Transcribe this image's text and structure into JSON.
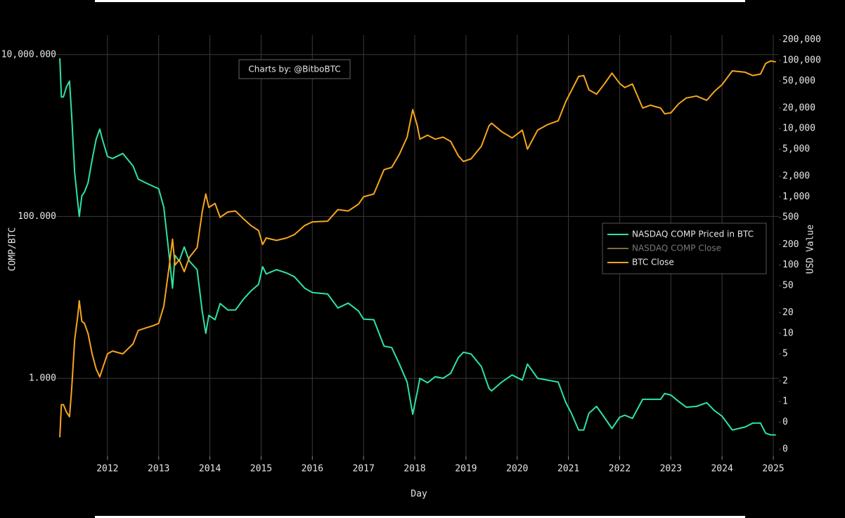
{
  "chart_data": {
    "type": "line",
    "annotation": "Charts by: @BitboBTC",
    "xlabel": "Day",
    "ylabel": "COMP/BTC",
    "y2label": "USD Value",
    "yscale": "log",
    "y2scale": "log",
    "grid": true,
    "legend": "right",
    "xlim": [
      2011.0,
      2025.11
    ],
    "xticks": [
      2012,
      2013,
      2014,
      2015,
      2016,
      2017,
      2018,
      2019,
      2020,
      2021,
      2022,
      2023,
      2024,
      2025
    ],
    "ylim": [
      0.109,
      17420
    ],
    "yticks": [
      {
        "value": 10000,
        "label": "10,000.000"
      },
      {
        "value": 100,
        "label": "100.000"
      },
      {
        "value": 1,
        "label": "1.000"
      }
    ],
    "y2lim": [
      0.158,
      234500
    ],
    "y2ticks": [
      {
        "value": 200000,
        "label": "200,000"
      },
      {
        "value": 100000,
        "label": "100,000"
      },
      {
        "value": 50000,
        "label": "50,000"
      },
      {
        "value": 20000,
        "label": "20,000"
      },
      {
        "value": 10000,
        "label": "10,000"
      },
      {
        "value": 5000,
        "label": "5,000"
      },
      {
        "value": 2000,
        "label": "2,000"
      },
      {
        "value": 1000,
        "label": "1,000"
      },
      500,
      200,
      100,
      50,
      20,
      10,
      5,
      2,
      1,
      {
        "value": 0.5,
        "label": "0"
      },
      {
        "value": 0.2,
        "label": "0"
      }
    ],
    "x": [
      2011.07,
      2011.1,
      2011.14,
      2011.2,
      2011.26,
      2011.3,
      2011.36,
      2011.42,
      2011.45,
      2011.5,
      2011.55,
      2011.62,
      2011.7,
      2011.78,
      2011.85,
      2011.9,
      2012.0,
      2012.1,
      2012.3,
      2012.5,
      2012.6,
      2012.75,
      2012.9,
      2013.0,
      2013.1,
      2013.2,
      2013.27,
      2013.32,
      2013.4,
      2013.5,
      2013.6,
      2013.75,
      2013.85,
      2013.92,
      2013.98,
      2014.1,
      2014.2,
      2014.35,
      2014.5,
      2014.65,
      2014.8,
      2014.95,
      2015.03,
      2015.1,
      2015.3,
      2015.5,
      2015.65,
      2015.85,
      2016.0,
      2016.3,
      2016.5,
      2016.7,
      2016.9,
      2017.0,
      2017.2,
      2017.4,
      2017.55,
      2017.7,
      2017.85,
      2017.96,
      2018.05,
      2018.1,
      2018.25,
      2018.4,
      2018.55,
      2018.7,
      2018.85,
      2018.95,
      2019.1,
      2019.3,
      2019.45,
      2019.5,
      2019.7,
      2019.9,
      2020.1,
      2020.2,
      2020.4,
      2020.6,
      2020.8,
      2020.95,
      2021.05,
      2021.2,
      2021.3,
      2021.4,
      2021.55,
      2021.7,
      2021.85,
      2022.0,
      2022.1,
      2022.25,
      2022.45,
      2022.6,
      2022.8,
      2022.88,
      2023.0,
      2023.15,
      2023.3,
      2023.5,
      2023.7,
      2023.85,
      2024.0,
      2024.2,
      2024.45,
      2024.6,
      2024.75,
      2024.85,
      2024.95,
      2025.05
    ],
    "series": [
      {
        "name": "NASDAQ COMP Priced in BTC",
        "color": "#2ee3a0",
        "axis": "y",
        "visible": true,
        "values": [
          9000,
          3000,
          3000,
          4000,
          4700,
          1800,
          350,
          150,
          100,
          180,
          200,
          260,
          500,
          900,
          1200,
          900,
          550,
          520,
          600,
          420,
          290,
          260,
          235,
          220,
          130,
          35,
          13,
          33,
          28,
          42,
          28,
          22,
          6.8,
          3.6,
          6,
          5.3,
          8.4,
          7,
          7,
          9.4,
          12,
          14.5,
          24,
          19.5,
          22,
          20,
          18,
          13,
          11.5,
          11,
          7.4,
          8.5,
          6.8,
          5.4,
          5.3,
          2.5,
          2.4,
          1.5,
          0.9,
          0.36,
          0.68,
          1.0,
          0.88,
          1.05,
          1.0,
          1.15,
          1.8,
          2.1,
          2.0,
          1.4,
          0.75,
          0.7,
          0.9,
          1.1,
          0.95,
          1.5,
          1.0,
          0.95,
          0.9,
          0.5,
          0.38,
          0.23,
          0.23,
          0.37,
          0.45,
          0.33,
          0.24,
          0.33,
          0.35,
          0.32,
          0.55,
          0.55,
          0.55,
          0.65,
          0.62,
          0.52,
          0.44,
          0.45,
          0.5,
          0.4,
          0.34,
          0.23,
          0.25,
          0.28,
          0.28,
          0.21,
          0.2,
          0.2
        ]
      },
      {
        "name": "NASDAQ COMP Close",
        "color": "#7a6a45",
        "axis": "y2",
        "visible": false,
        "values": [
          null,
          null,
          null,
          null,
          null,
          null,
          null,
          null,
          null,
          null,
          null,
          null,
          null,
          null,
          null,
          null,
          null,
          null,
          null,
          null,
          null,
          null,
          null,
          null,
          null,
          null,
          null,
          null,
          null,
          null,
          null,
          null,
          null,
          null,
          null,
          null,
          null,
          null,
          null,
          null,
          null,
          null,
          null,
          null,
          null,
          null,
          null,
          null,
          null,
          null,
          null,
          null,
          null,
          null,
          null,
          null,
          null,
          null,
          null,
          null,
          null,
          null,
          null,
          null,
          null,
          null,
          null,
          null,
          null,
          null,
          null,
          null,
          null,
          null,
          null,
          null,
          null,
          null,
          null,
          null,
          null,
          null,
          null,
          null,
          null,
          null,
          null,
          null,
          null,
          null,
          null,
          null,
          null,
          null,
          null,
          null,
          null,
          null,
          null,
          null,
          null,
          null,
          null,
          null,
          null,
          null,
          null,
          null
        ]
      },
      {
        "name": "BTC Close",
        "color": "#f7a51c",
        "axis": "y2",
        "visible": true,
        "values": [
          0.3,
          0.9,
          0.9,
          0.7,
          0.6,
          1.5,
          8,
          18,
          30,
          15,
          14,
          10,
          5,
          3,
          2.3,
          3,
          5,
          5.5,
          5,
          7,
          11,
          12,
          13,
          14,
          25,
          90,
          240,
          100,
          120,
          80,
          130,
          180,
          600,
          1100,
          700,
          800,
          500,
          600,
          620,
          480,
          380,
          320,
          200,
          250,
          230,
          250,
          280,
          380,
          430,
          440,
          650,
          620,
          780,
          1000,
          1100,
          2500,
          2700,
          4200,
          7500,
          19000,
          11000,
          7000,
          8000,
          7000,
          7500,
          6500,
          4000,
          3300,
          3600,
          5500,
          11000,
          12000,
          9000,
          7300,
          9500,
          5000,
          9500,
          11500,
          13000,
          25000,
          35000,
          58000,
          60000,
          37000,
          32000,
          45000,
          65000,
          46000,
          40000,
          45000,
          20000,
          22000,
          20000,
          16500,
          17000,
          23000,
          28000,
          30000,
          26000,
          35000,
          44000,
          70000,
          67000,
          60000,
          63000,
          90000,
          98000,
          95000
        ]
      }
    ]
  }
}
